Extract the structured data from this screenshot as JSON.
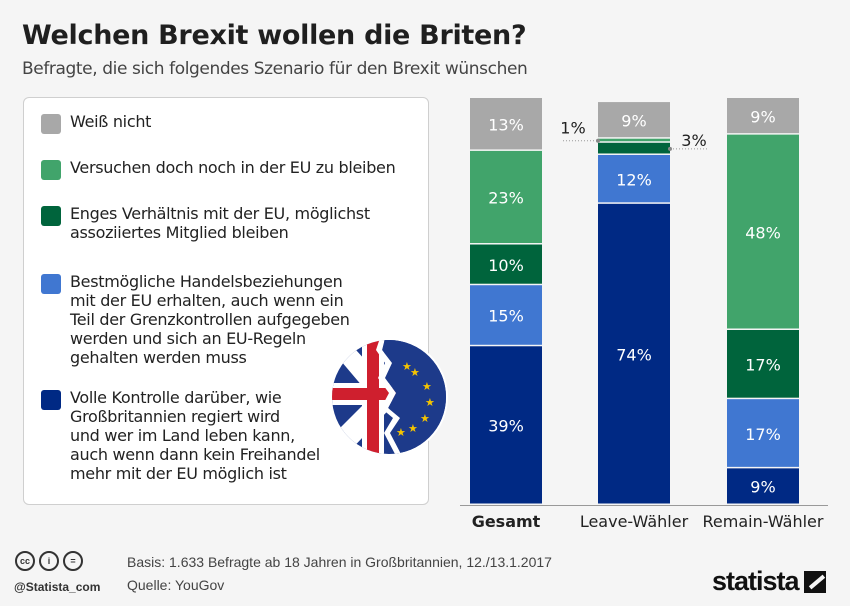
{
  "header": {
    "title": "Welchen Brexit wollen die Briten?",
    "subtitle": "Befragte, die sich folgendes Szenario für den Brexit wünschen"
  },
  "legend": [
    {
      "label": "Weiß nicht",
      "color": "#a8a8a8"
    },
    {
      "label": "Versuchen doch noch in der EU zu bleiben",
      "color": "#41a46b"
    },
    {
      "label": "Enges Verhältnis mit der EU, möglichst assoziiertes Mitglied bleiben",
      "color": "#00643c"
    },
    {
      "label": "Bestmögliche Handelsbeziehungen mit der EU erhalten, auch wenn ein Teil der Grenzkontrollen aufgegeben werden und sich an EU-Regeln gehalten werden muss",
      "color": "#4077d1"
    },
    {
      "label": "Volle Kontrolle darüber, wie Großbritannien regiert wird und wer im Land leben kann, auch wenn dann kein Freihandel mehr mit der EU möglich ist",
      "color": "#002984"
    }
  ],
  "legend_lines": [
    [
      "Weiß nicht"
    ],
    [
      "Versuchen doch noch in der EU zu bleiben"
    ],
    [
      "Enges Verhältnis mit der EU, möglichst",
      "assoziiertes Mitglied bleiben"
    ],
    [
      "Bestmögliche Handelsbeziehungen",
      "mit der EU erhalten, auch wenn ein",
      "Teil der Grenzkontrollen aufgegeben",
      "werden und sich an EU-Regeln",
      "gehalten werden muss"
    ],
    [
      "Volle Kontrolle darüber, wie",
      "Großbritannien regiert wird",
      "und wer im Land leben kann,",
      "auch wenn dann kein Freihandel",
      "mehr mit der EU möglich ist"
    ]
  ],
  "chart_data": {
    "type": "bar",
    "stacked": true,
    "orientation": "vertical",
    "title": "Welchen Brexit wollen die Briten?",
    "subtitle": "Befragte, die sich folgendes Szenario für den Brexit wünschen",
    "categories": [
      "Gesamt",
      "Leave-Wähler",
      "Remain-Wähler"
    ],
    "category_bold": [
      true,
      false,
      false
    ],
    "unit": "%",
    "ylim": [
      0,
      100
    ],
    "series": [
      {
        "name": "Volle Kontrolle darüber, wie Großbritannien regiert wird und wer im Land leben kann, auch wenn dann kein Freihandel mehr mit der EU möglich ist",
        "color": "#002984",
        "values": [
          39,
          74,
          9
        ]
      },
      {
        "name": "Bestmögliche Handelsbeziehungen mit der EU erhalten, auch wenn ein Teil der Grenzkontrollen aufgegeben werden und sich an EU-Regeln gehalten werden muss",
        "color": "#4077d1",
        "values": [
          15,
          12,
          17
        ]
      },
      {
        "name": "Enges Verhältnis mit der EU, möglichst assoziiertes Mitglied bleiben",
        "color": "#00643c",
        "values": [
          10,
          3,
          17
        ]
      },
      {
        "name": "Versuchen doch noch in der EU zu bleiben",
        "color": "#41a46b",
        "values": [
          23,
          1,
          48
        ]
      },
      {
        "name": "Weiß nicht",
        "color": "#a8a8a8",
        "values": [
          13,
          9,
          9
        ]
      }
    ],
    "external_labels": [
      {
        "category": "Leave-Wähler",
        "series": "Versuchen doch noch in der EU zu bleiben",
        "text": "1%",
        "side": "left"
      },
      {
        "category": "Leave-Wähler",
        "series": "Enges Verhältnis mit der EU, möglichst assoziiertes Mitglied bleiben",
        "text": "3%",
        "side": "right"
      }
    ],
    "grid": false,
    "legend_position": "left"
  },
  "footer": {
    "basis": "Basis: 1.633 Befragte ab 18 Jahren in Großbritannien, 12./13.1.2017",
    "source": "Quelle: YouGov",
    "handle": "@Statista_com",
    "logo": "statista",
    "cc_icons": [
      "cc",
      "by",
      "nd"
    ]
  }
}
